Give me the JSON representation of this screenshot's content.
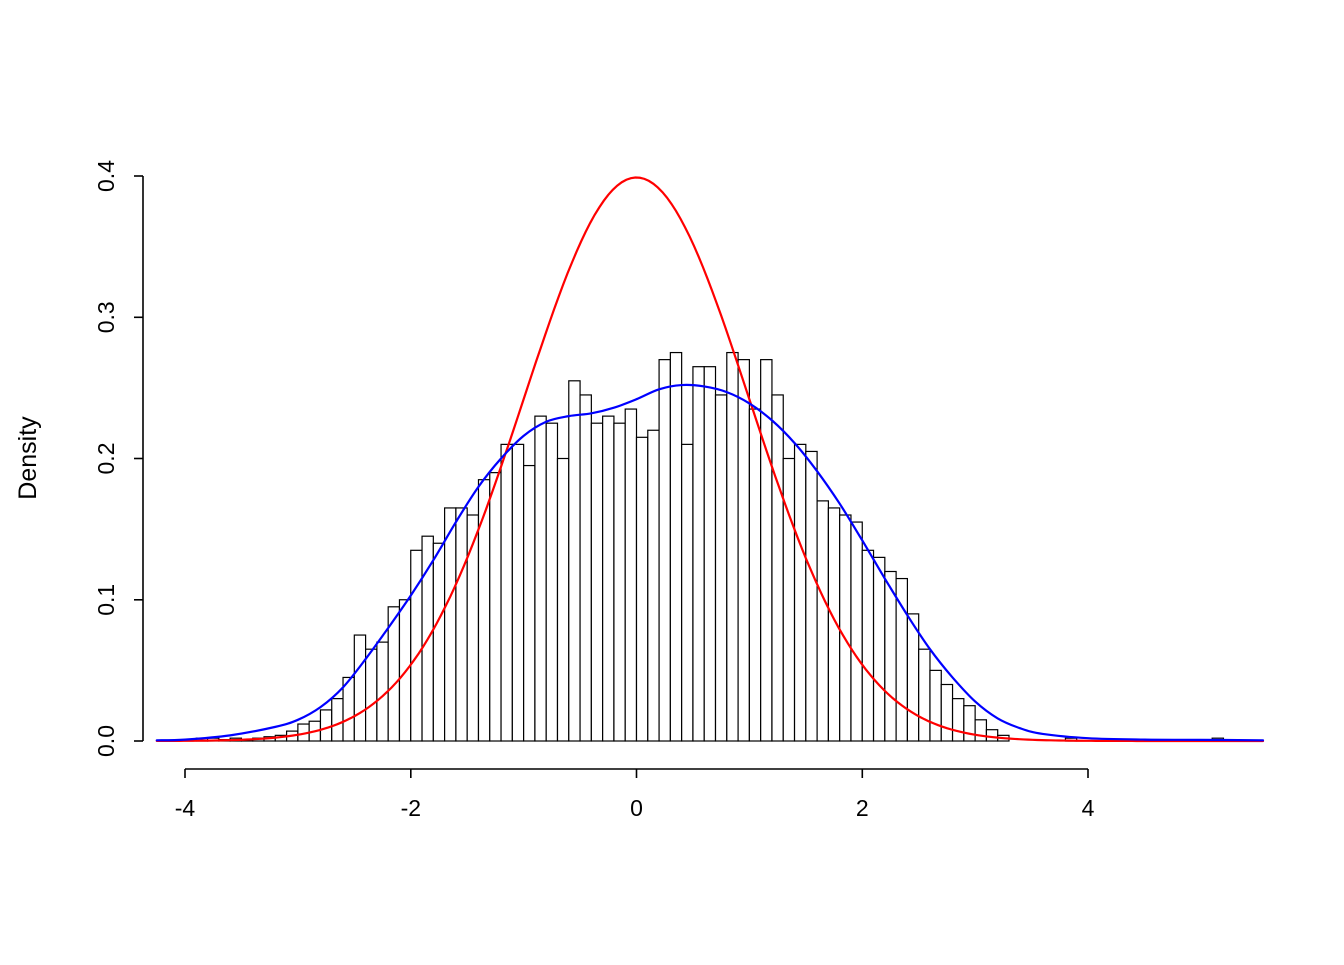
{
  "figure": {
    "background": "#FFFFFF",
    "foreground": "#000000"
  },
  "chart_data": {
    "type": "bar",
    "subtype": "histogram-with-density-overlays",
    "title": "",
    "xlabel": "",
    "ylabel": "Density",
    "xlim": [
      -4.3,
      5.6
    ],
    "ylim": [
      0,
      0.4
    ],
    "grid": "off",
    "legend": "none",
    "x_ticks": [
      -4,
      -2,
      0,
      2,
      4
    ],
    "x_tick_labels": [
      "-4",
      "-2",
      "0",
      "2",
      "4"
    ],
    "y_ticks": [
      0,
      0.1,
      0.2,
      0.3,
      0.4
    ],
    "y_tick_labels": [
      "0.0",
      "0.1",
      "0.2",
      "0.3",
      "0.4"
    ],
    "histogram": {
      "bin_start": -3.9,
      "bin_width": 0.1,
      "bar_fill": "#FFFFFF",
      "bar_stroke": "#000000",
      "densities": [
        0.002,
        0.002,
        0.001,
        0.002,
        0.001,
        0.002,
        0.003,
        0.004,
        0.007,
        0.012,
        0.014,
        0.022,
        0.03,
        0.045,
        0.075,
        0.065,
        0.07,
        0.095,
        0.1,
        0.135,
        0.145,
        0.14,
        0.165,
        0.165,
        0.16,
        0.185,
        0.19,
        0.21,
        0.21,
        0.195,
        0.23,
        0.225,
        0.2,
        0.255,
        0.245,
        0.225,
        0.23,
        0.225,
        0.235,
        0.215,
        0.22,
        0.27,
        0.275,
        0.21,
        0.265,
        0.265,
        0.245,
        0.275,
        0.27,
        0.235,
        0.27,
        0.245,
        0.2,
        0.21,
        0.205,
        0.17,
        0.165,
        0.16,
        0.155,
        0.135,
        0.13,
        0.12,
        0.115,
        0.09,
        0.065,
        0.05,
        0.04,
        0.03,
        0.025,
        0.015,
        0.008,
        0.004
      ],
      "extra_bars": [
        {
          "x": 3.8,
          "height": 0.002
        },
        {
          "x": 5.1,
          "height": 0.002
        }
      ]
    },
    "curves": [
      {
        "name": "standard-normal-curve",
        "color": "#FF0000",
        "formula": "normal",
        "mean": 0,
        "sd": 1,
        "peak": 0.399
      },
      {
        "name": "kernel-density-curve",
        "color": "#0000FF",
        "points": {
          "x": [
            -4.25,
            -4.0,
            -3.6,
            -3.2,
            -3.0,
            -2.8,
            -2.6,
            -2.4,
            -2.2,
            -2.0,
            -1.8,
            -1.6,
            -1.4,
            -1.2,
            -1.0,
            -0.8,
            -0.6,
            -0.4,
            -0.2,
            0.0,
            0.2,
            0.4,
            0.6,
            0.8,
            1.0,
            1.2,
            1.4,
            1.6,
            1.8,
            2.0,
            2.2,
            2.4,
            2.6,
            2.8,
            3.0,
            3.2,
            3.4,
            3.6,
            4.0,
            4.5,
            5.0,
            5.55
          ],
          "y": [
            0.0005,
            0.001,
            0.004,
            0.01,
            0.015,
            0.024,
            0.038,
            0.058,
            0.08,
            0.103,
            0.128,
            0.155,
            0.18,
            0.2,
            0.216,
            0.226,
            0.23,
            0.232,
            0.236,
            0.242,
            0.249,
            0.252,
            0.251,
            0.247,
            0.239,
            0.227,
            0.211,
            0.191,
            0.168,
            0.142,
            0.115,
            0.089,
            0.065,
            0.045,
            0.028,
            0.016,
            0.009,
            0.005,
            0.002,
            0.001,
            0.0008,
            0.0005
          ]
        }
      }
    ]
  }
}
